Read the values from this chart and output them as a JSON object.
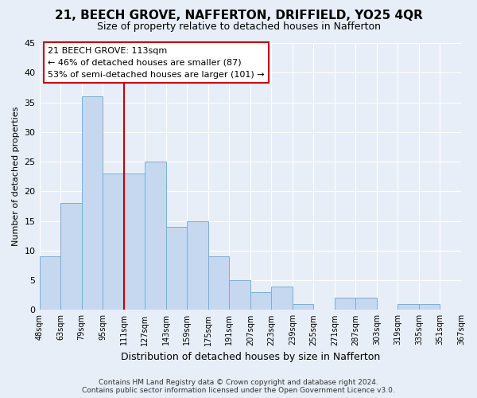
{
  "title": "21, BEECH GROVE, NAFFERTON, DRIFFIELD, YO25 4QR",
  "subtitle": "Size of property relative to detached houses in Nafferton",
  "xlabel": "Distribution of detached houses by size in Nafferton",
  "ylabel": "Number of detached properties",
  "footer_line1": "Contains HM Land Registry data © Crown copyright and database right 2024.",
  "footer_line2": "Contains public sector information licensed under the Open Government Licence v3.0.",
  "bin_labels": [
    "48sqm",
    "63sqm",
    "79sqm",
    "95sqm",
    "111sqm",
    "127sqm",
    "143sqm",
    "159sqm",
    "175sqm",
    "191sqm",
    "207sqm",
    "223sqm",
    "239sqm",
    "255sqm",
    "271sqm",
    "287sqm",
    "303sqm",
    "319sqm",
    "335sqm",
    "351sqm",
    "367sqm"
  ],
  "values": [
    9,
    18,
    36,
    23,
    23,
    25,
    14,
    15,
    9,
    5,
    3,
    4,
    1,
    0,
    2,
    2,
    0,
    1,
    1,
    0
  ],
  "bar_color": "#c5d8f0",
  "bar_edge_color": "#7aafd4",
  "background_color": "#e8eef8",
  "grid_color": "#ffffff",
  "ylim": [
    0,
    45
  ],
  "yticks": [
    0,
    5,
    10,
    15,
    20,
    25,
    30,
    35,
    40,
    45
  ],
  "vline_bin_index": 4,
  "vline_color": "#cc0000",
  "annotation_text": "21 BEECH GROVE: 113sqm\n← 46% of detached houses are smaller (87)\n53% of semi-detached houses are larger (101) →",
  "annotation_box_facecolor": "#ffffff",
  "annotation_box_edgecolor": "#cc0000",
  "title_fontsize": 11,
  "subtitle_fontsize": 9,
  "ylabel_fontsize": 8,
  "xlabel_fontsize": 9,
  "annotation_fontsize": 8,
  "footer_fontsize": 6.5
}
